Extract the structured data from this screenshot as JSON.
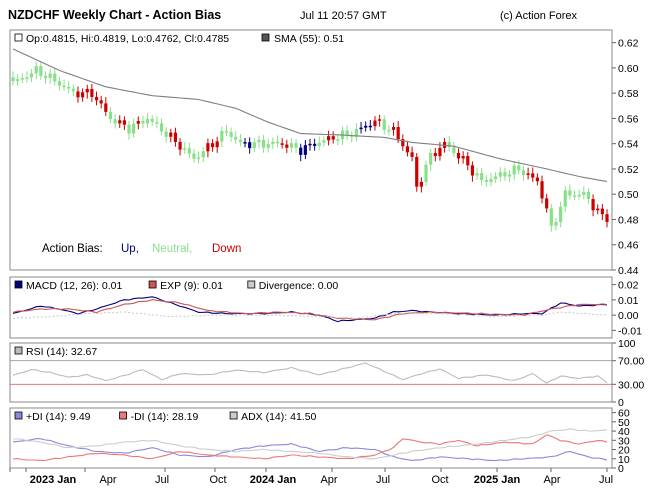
{
  "header": {
    "title": "NZDCHF Weekly Chart - Action Bias",
    "timestamp": "Jul 11 20:57 GMT",
    "copyright": "(c) Action Forex"
  },
  "colors": {
    "up": "#00007f",
    "neutral": "#88e088",
    "down": "#cc0000",
    "sma": "#808080",
    "macd": "#00007f",
    "exp": "#cc5555",
    "divergence": "#cccccc",
    "rsi": "#bbbbbb",
    "plus_di": "#8888dd",
    "minus_di": "#ee7777",
    "adx": "#cccccc",
    "frame": "#888888"
  },
  "chart_data": [
    {
      "type": "candlestick",
      "id": "price",
      "legend": {
        "ohlc": "Op:0.4815, Hi:0.4819, Lo:0.4762, Cl:0.4785",
        "sma": "SMA (55): 0.51"
      },
      "bias_legend": {
        "label": "Action Bias:",
        "up": "Up,",
        "neutral": "Neutral,",
        "down": "Down"
      },
      "ylim": [
        0.44,
        0.63
      ],
      "yticks": [
        "0.44",
        "0.46",
        "0.48",
        "0.50",
        "0.52",
        "0.54",
        "0.56",
        "0.58",
        "0.60",
        "0.62"
      ],
      "x_labels": [
        "2023 Jan",
        "Apr",
        "Jul",
        "Oct",
        "2024 Jan",
        "Apr",
        "Jul",
        "Oct",
        "2025 Jan",
        "Apr",
        "Jul"
      ],
      "x_bold": [
        true,
        false,
        false,
        false,
        true,
        false,
        false,
        false,
        true,
        false,
        false
      ],
      "anchors": {
        "close": [
          [
            0,
            0.588
          ],
          [
            5,
            0.598
          ],
          [
            9,
            0.59
          ],
          [
            13,
            0.58
          ],
          [
            17,
            0.58
          ],
          [
            21,
            0.56
          ],
          [
            25,
            0.552
          ],
          [
            29,
            0.56
          ],
          [
            34,
            0.545
          ],
          [
            39,
            0.528
          ],
          [
            43,
            0.54
          ],
          [
            46,
            0.55
          ],
          [
            49,
            0.54
          ],
          [
            53,
            0.54
          ],
          [
            58,
            0.54
          ],
          [
            62,
            0.535
          ],
          [
            65,
            0.54
          ],
          [
            69,
            0.545
          ],
          [
            73,
            0.548
          ],
          [
            78,
            0.558
          ],
          [
            82,
            0.55
          ],
          [
            86,
            0.528
          ],
          [
            87,
            0.505
          ],
          [
            90,
            0.53
          ],
          [
            93,
            0.54
          ],
          [
            97,
            0.527
          ],
          [
            101,
            0.51
          ],
          [
            105,
            0.515
          ],
          [
            109,
            0.52
          ],
          [
            113,
            0.51
          ],
          [
            115,
            0.488
          ],
          [
            116,
            0.472
          ],
          [
            119,
            0.5
          ],
          [
            123,
            0.5
          ],
          [
            127,
            0.482
          ]
        ],
        "sma": [
          [
            0,
            0.615
          ],
          [
            10,
            0.598
          ],
          [
            20,
            0.585
          ],
          [
            30,
            0.578
          ],
          [
            40,
            0.575
          ],
          [
            48,
            0.568
          ],
          [
            55,
            0.557
          ],
          [
            62,
            0.548
          ],
          [
            70,
            0.547
          ],
          [
            80,
            0.545
          ],
          [
            86,
            0.541
          ],
          [
            95,
            0.538
          ],
          [
            105,
            0.528
          ],
          [
            115,
            0.52
          ],
          [
            122,
            0.514
          ],
          [
            128,
            0.51
          ]
        ],
        "bias": [
          [
            0,
            0,
            "neutral"
          ],
          [
            14,
            "down"
          ],
          [
            21,
            "neutral"
          ],
          [
            23,
            "down"
          ],
          [
            25,
            "neutral"
          ],
          [
            27,
            "down"
          ],
          [
            28,
            "neutral"
          ],
          [
            34,
            "down"
          ],
          [
            37,
            "neutral"
          ],
          [
            42,
            "down"
          ],
          [
            45,
            "neutral"
          ],
          [
            50,
            "up"
          ],
          [
            52,
            "neutral"
          ],
          [
            58,
            "down"
          ],
          [
            60,
            "neutral"
          ],
          [
            62,
            "up"
          ],
          [
            66,
            "neutral"
          ],
          [
            68,
            "down"
          ],
          [
            70,
            "neutral"
          ],
          [
            72,
            "neutral"
          ],
          [
            75,
            "up"
          ],
          [
            78,
            "down"
          ],
          [
            80,
            "neutral"
          ],
          [
            82,
            "down"
          ],
          [
            83,
            "down"
          ],
          [
            86,
            "down"
          ],
          [
            89,
            "neutral"
          ],
          [
            91,
            "down"
          ],
          [
            94,
            "neutral"
          ],
          [
            96,
            "down"
          ],
          [
            100,
            "neutral"
          ],
          [
            104,
            "neutral"
          ],
          [
            108,
            "neutral"
          ],
          [
            111,
            "down"
          ],
          [
            113,
            "down"
          ],
          [
            115,
            "down"
          ],
          [
            116,
            "neutral"
          ],
          [
            125,
            "down"
          ]
        ]
      }
    },
    {
      "type": "line",
      "id": "macd",
      "legend": [
        "MACD (12, 26): 0.01",
        "EXP (9): 0.01",
        "Divergence: 0.00"
      ],
      "ylim": [
        -0.015,
        0.025
      ],
      "yticks": [
        "-0.01",
        "0.00",
        "0.01",
        "0.02"
      ],
      "series": [
        {
          "name": "MACD (12, 26)",
          "anchors": [
            [
              0,
              0.001
            ],
            [
              6,
              0.006
            ],
            [
              10,
              0.004
            ],
            [
              14,
              0.001
            ],
            [
              18,
              0.004
            ],
            [
              24,
              0.01
            ],
            [
              30,
              0.012
            ],
            [
              34,
              0.008
            ],
            [
              40,
              0.002
            ],
            [
              46,
              0.001
            ],
            [
              54,
              0.001
            ],
            [
              60,
              0.002
            ],
            [
              66,
              0.0
            ],
            [
              70,
              -0.004
            ],
            [
              74,
              -0.003
            ],
            [
              78,
              -0.002
            ],
            [
              82,
              0.002
            ],
            [
              86,
              0.003
            ],
            [
              90,
              0.002
            ],
            [
              96,
              0.001
            ],
            [
              104,
              0.0
            ],
            [
              110,
              0.001
            ],
            [
              114,
              0.001
            ],
            [
              118,
              0.008
            ],
            [
              122,
              0.006
            ],
            [
              128,
              0.007
            ]
          ]
        },
        {
          "name": "EXP (9)",
          "anchors": [
            [
              0,
              0.002
            ],
            [
              6,
              0.004
            ],
            [
              12,
              0.004
            ],
            [
              18,
              0.002
            ],
            [
              24,
              0.007
            ],
            [
              30,
              0.01
            ],
            [
              36,
              0.008
            ],
            [
              42,
              0.003
            ],
            [
              50,
              0.001
            ],
            [
              58,
              0.002
            ],
            [
              64,
              0.001
            ],
            [
              70,
              -0.002
            ],
            [
              78,
              -0.003
            ],
            [
              84,
              0.001
            ],
            [
              90,
              0.002
            ],
            [
              100,
              0.001
            ],
            [
              110,
              0.0
            ],
            [
              116,
              0.004
            ],
            [
              122,
              0.007
            ],
            [
              128,
              0.007
            ]
          ]
        },
        {
          "name": "Divergence",
          "anchors": [
            [
              0,
              -0.002
            ],
            [
              8,
              -0.001
            ],
            [
              16,
              0.001
            ],
            [
              24,
              0.002
            ],
            [
              34,
              -0.001
            ],
            [
              44,
              0.0
            ],
            [
              56,
              0.0
            ],
            [
              66,
              -0.001
            ],
            [
              74,
              -0.002
            ],
            [
              82,
              0.001
            ],
            [
              92,
              0.001
            ],
            [
              104,
              -0.001
            ],
            [
              114,
              0.0
            ],
            [
              118,
              0.002
            ],
            [
              128,
              0.0
            ]
          ]
        }
      ]
    },
    {
      "type": "line",
      "id": "rsi",
      "legend": [
        "RSI (14): 32.67"
      ],
      "ylim": [
        0,
        100
      ],
      "yticks": [
        "0",
        "30.00",
        "70.00",
        "100"
      ],
      "levels": [
        30,
        70
      ],
      "series": [
        {
          "name": "RSI (14)",
          "anchors": [
            [
              0,
              45
            ],
            [
              4,
              55
            ],
            [
              8,
              50
            ],
            [
              12,
              42
            ],
            [
              16,
              46
            ],
            [
              20,
              36
            ],
            [
              24,
              45
            ],
            [
              28,
              55
            ],
            [
              32,
              38
            ],
            [
              36,
              48
            ],
            [
              42,
              46
            ],
            [
              48,
              54
            ],
            [
              54,
              50
            ],
            [
              60,
              58
            ],
            [
              66,
              46
            ],
            [
              72,
              58
            ],
            [
              76,
              66
            ],
            [
              80,
              52
            ],
            [
              84,
              38
            ],
            [
              88,
              48
            ],
            [
              92,
              56
            ],
            [
              96,
              40
            ],
            [
              102,
              46
            ],
            [
              108,
              36
            ],
            [
              112,
              48
            ],
            [
              115,
              32
            ],
            [
              118,
              44
            ],
            [
              122,
              40
            ],
            [
              126,
              44
            ],
            [
              128,
              33
            ]
          ]
        }
      ]
    },
    {
      "type": "line",
      "id": "dmi",
      "legend": [
        "+DI (14): 9.49",
        "-DI (14): 28.19",
        "ADX (14): 41.50"
      ],
      "ylim": [
        0,
        65
      ],
      "yticks": [
        "0",
        "10",
        "20",
        "30",
        "40",
        "50",
        "60"
      ],
      "series": [
        {
          "name": "+DI (14)",
          "anchors": [
            [
              0,
              28
            ],
            [
              6,
              32
            ],
            [
              12,
              24
            ],
            [
              18,
              18
            ],
            [
              24,
              16
            ],
            [
              30,
              22
            ],
            [
              36,
              14
            ],
            [
              42,
              12
            ],
            [
              48,
              20
            ],
            [
              54,
              24
            ],
            [
              60,
              26
            ],
            [
              66,
              18
            ],
            [
              72,
              22
            ],
            [
              78,
              20
            ],
            [
              82,
              12
            ],
            [
              86,
              8
            ],
            [
              92,
              12
            ],
            [
              98,
              10
            ],
            [
              104,
              8
            ],
            [
              110,
              10
            ],
            [
              116,
              12
            ],
            [
              120,
              18
            ],
            [
              124,
              12
            ],
            [
              128,
              9
            ]
          ]
        },
        {
          "name": "-DI (14)",
          "anchors": [
            [
              0,
              10
            ],
            [
              6,
              8
            ],
            [
              12,
              12
            ],
            [
              18,
              16
            ],
            [
              24,
              14
            ],
            [
              30,
              10
            ],
            [
              36,
              18
            ],
            [
              42,
              14
            ],
            [
              48,
              12
            ],
            [
              54,
              10
            ],
            [
              60,
              14
            ],
            [
              66,
              12
            ],
            [
              72,
              10
            ],
            [
              78,
              14
            ],
            [
              82,
              22
            ],
            [
              84,
              32
            ],
            [
              88,
              28
            ],
            [
              92,
              26
            ],
            [
              96,
              30
            ],
            [
              100,
              24
            ],
            [
              106,
              28
            ],
            [
              112,
              26
            ],
            [
              115,
              36
            ],
            [
              118,
              30
            ],
            [
              122,
              26
            ],
            [
              126,
              30
            ],
            [
              128,
              28
            ]
          ]
        },
        {
          "name": "ADX (14)",
          "anchors": [
            [
              0,
              32
            ],
            [
              6,
              28
            ],
            [
              12,
              22
            ],
            [
              18,
              24
            ],
            [
              24,
              28
            ],
            [
              30,
              30
            ],
            [
              36,
              24
            ],
            [
              42,
              20
            ],
            [
              48,
              18
            ],
            [
              54,
              20
            ],
            [
              60,
              18
            ],
            [
              66,
              16
            ],
            [
              72,
              12
            ],
            [
              78,
              10
            ],
            [
              82,
              14
            ],
            [
              86,
              18
            ],
            [
              92,
              22
            ],
            [
              100,
              26
            ],
            [
              106,
              30
            ],
            [
              112,
              34
            ],
            [
              116,
              40
            ],
            [
              120,
              42
            ],
            [
              124,
              40
            ],
            [
              128,
              41
            ]
          ]
        }
      ]
    }
  ]
}
